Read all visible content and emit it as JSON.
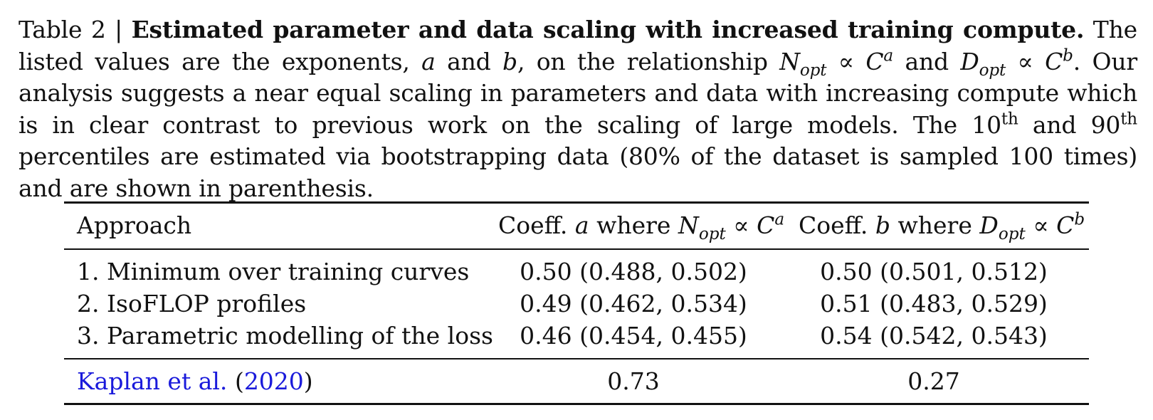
{
  "caption": {
    "label": "Table 2 |",
    "title": "Estimated parameter and data scaling with increased training compute.",
    "s1": "The listed values are the exponents,",
    "var_a": "a",
    "and": "and",
    "var_b": "b",
    "s2": ", on the relationship",
    "n": "N",
    "opt": "opt",
    "prop": "∝",
    "c": "C",
    "d": "D",
    "s3": ". Our analysis suggests a near equal scaling in parameters and data with increasing compute which is in clear contrast to previous work on the scaling of large models. The",
    "p10": "10",
    "th": "th",
    "p90": "90",
    "s4": "percentiles are estimated via bootstrapping data (80% of the dataset is sampled 100 times) and are shown in parenthesis."
  },
  "table": {
    "headers": {
      "approach": "Approach",
      "coeff": "Coeff.",
      "where": "where",
      "var_a": "a",
      "var_b": "b",
      "n": "N",
      "d": "D",
      "opt": "opt",
      "prop": "∝",
      "c": "C"
    },
    "rows": [
      {
        "approach": "1. Minimum over training curves",
        "a": "0.50 (0.488, 0.502)",
        "b": "0.50 (0.501, 0.512)"
      },
      {
        "approach": "2. IsoFLOP profiles",
        "a": "0.49 (0.462, 0.534)",
        "b": "0.51 (0.483, 0.529)"
      },
      {
        "approach": "3. Parametric modelling of the loss",
        "a": "0.46 (0.454, 0.455)",
        "b": "0.54 (0.542, 0.543)"
      }
    ],
    "reference": {
      "author": "Kaplan et al.",
      "open": "(",
      "year": "2020",
      "close": ")",
      "a": "0.73",
      "b": "0.27"
    }
  },
  "colors": {
    "link": "#1a1adb",
    "text": "#111111"
  }
}
